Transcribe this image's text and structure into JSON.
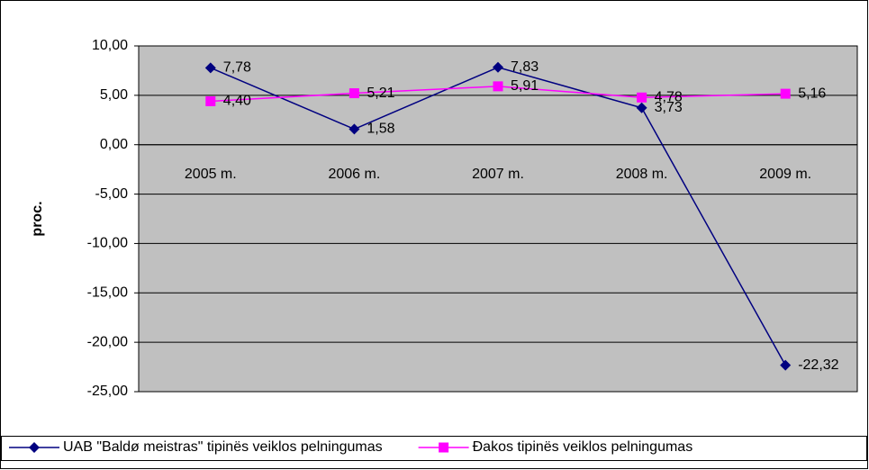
{
  "chart_data": {
    "type": "line",
    "y_label": "proc.",
    "categories": [
      "2005 m.",
      "2006 m.",
      "2007 m.",
      "2008 m.",
      "2009 m."
    ],
    "series": [
      {
        "name": "UAB \"Baldø meistras\" tipinës veiklos pelningumas",
        "color": "#000080",
        "marker": "diamond",
        "values": [
          7.78,
          1.58,
          7.83,
          3.73,
          -22.32
        ],
        "value_labels": [
          "7,78",
          "1,58",
          "7,83",
          "3,73",
          "-22,32"
        ]
      },
      {
        "name": "Ðakos tipinës veiklos pelningumas",
        "color": "#ff00ff",
        "marker": "square",
        "values": [
          4.4,
          5.21,
          5.91,
          4.78,
          5.16
        ],
        "value_labels": [
          "4,40",
          "5,21",
          "5,91",
          "4,78",
          "5,16"
        ]
      }
    ],
    "ylim": [
      -25,
      10
    ],
    "yticks": [
      {
        "value": 10,
        "label": "10,00"
      },
      {
        "value": 5,
        "label": "5,00"
      },
      {
        "value": 0,
        "label": "0,00"
      },
      {
        "value": -5,
        "label": "-5,00"
      },
      {
        "value": -10,
        "label": "-10,00"
      },
      {
        "value": -15,
        "label": "-15,00"
      },
      {
        "value": -20,
        "label": "-20,00"
      },
      {
        "value": -25,
        "label": "-25,00"
      }
    ],
    "grid": true,
    "plot_background": "#c0c0c0",
    "legend": "bottom"
  }
}
